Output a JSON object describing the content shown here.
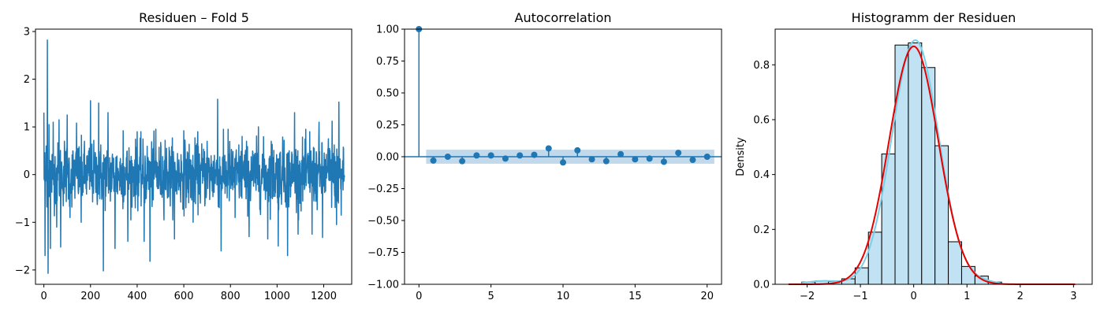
{
  "chart_data": [
    {
      "type": "line",
      "title": "Residuen – Fold 5",
      "xlabel": "",
      "ylabel": "",
      "xlim": [
        -36,
        1320
      ],
      "ylim": [
        -2.3,
        3.05
      ],
      "xticks": [
        "0",
        "200",
        "400",
        "600",
        "800",
        "1000",
        "1200"
      ],
      "xtick_values": [
        0,
        200,
        400,
        600,
        800,
        1000,
        1200
      ],
      "yticks": [
        "−2",
        "−1",
        "0",
        "1",
        "2",
        "3"
      ],
      "ytick_values": [
        -2,
        -1,
        0,
        1,
        2,
        3
      ],
      "color": "#1f77b4",
      "n_points": 1290,
      "spikes": [
        {
          "x": 0,
          "y": 1.3
        },
        {
          "x": 5,
          "y": -1.7
        },
        {
          "x": 10,
          "y": 0.6
        },
        {
          "x": 15,
          "y": 2.82
        },
        {
          "x": 18,
          "y": -2.07
        },
        {
          "x": 22,
          "y": 1.05
        },
        {
          "x": 28,
          "y": -1.55
        },
        {
          "x": 40,
          "y": 1.1
        },
        {
          "x": 55,
          "y": -1.1
        },
        {
          "x": 65,
          "y": 1.15
        },
        {
          "x": 72,
          "y": -1.52
        },
        {
          "x": 88,
          "y": 0.7
        },
        {
          "x": 100,
          "y": 1.25
        },
        {
          "x": 112,
          "y": -0.9
        },
        {
          "x": 140,
          "y": 1.08
        },
        {
          "x": 160,
          "y": -1.0
        },
        {
          "x": 200,
          "y": 1.55
        },
        {
          "x": 235,
          "y": 1.5
        },
        {
          "x": 255,
          "y": -2.02
        },
        {
          "x": 275,
          "y": 1.3
        },
        {
          "x": 305,
          "y": -1.55
        },
        {
          "x": 340,
          "y": 0.92
        },
        {
          "x": 360,
          "y": -1.4
        },
        {
          "x": 400,
          "y": 0.9
        },
        {
          "x": 430,
          "y": -1.4
        },
        {
          "x": 455,
          "y": -1.82
        },
        {
          "x": 480,
          "y": 0.95
        },
        {
          "x": 520,
          "y": 0.72
        },
        {
          "x": 560,
          "y": -1.35
        },
        {
          "x": 600,
          "y": 0.92
        },
        {
          "x": 640,
          "y": -1.0
        },
        {
          "x": 660,
          "y": 0.9
        },
        {
          "x": 700,
          "y": 0.7
        },
        {
          "x": 745,
          "y": 1.58
        },
        {
          "x": 760,
          "y": -1.6
        },
        {
          "x": 790,
          "y": 0.95
        },
        {
          "x": 820,
          "y": -0.9
        },
        {
          "x": 850,
          "y": 0.8
        },
        {
          "x": 880,
          "y": -1.3
        },
        {
          "x": 920,
          "y": 1.0
        },
        {
          "x": 960,
          "y": -1.35
        },
        {
          "x": 975,
          "y": 0.7
        },
        {
          "x": 1005,
          "y": -1.5
        },
        {
          "x": 1030,
          "y": 0.72
        },
        {
          "x": 1045,
          "y": -1.7
        },
        {
          "x": 1075,
          "y": 1.3
        },
        {
          "x": 1090,
          "y": -1.25
        },
        {
          "x": 1140,
          "y": 0.9
        },
        {
          "x": 1150,
          "y": -1.25
        },
        {
          "x": 1180,
          "y": 1.1
        },
        {
          "x": 1195,
          "y": -1.32
        },
        {
          "x": 1220,
          "y": 0.75
        },
        {
          "x": 1236,
          "y": 1.12
        },
        {
          "x": 1255,
          "y": -1.05
        },
        {
          "x": 1265,
          "y": 1.52
        },
        {
          "x": 1275,
          "y": -0.85
        },
        {
          "x": 1285,
          "y": 0.55
        }
      ]
    },
    {
      "type": "scatter",
      "subtype": "stem",
      "title": "Autocorrelation",
      "xlabel": "",
      "ylabel": "",
      "xlim": [
        -1,
        21
      ],
      "ylim": [
        -1.0,
        1.0
      ],
      "xticks": [
        "0",
        "5",
        "10",
        "15",
        "20"
      ],
      "xtick_values": [
        0,
        5,
        10,
        15,
        20
      ],
      "yticks": [
        "−1.00",
        "−0.75",
        "−0.50",
        "−0.25",
        "0.00",
        "0.25",
        "0.50",
        "0.75",
        "1.00"
      ],
      "ytick_values": [
        -1.0,
        -0.75,
        -0.5,
        -0.25,
        0.0,
        0.25,
        0.5,
        0.75,
        1.0
      ],
      "lags": [
        0,
        1,
        2,
        3,
        4,
        5,
        6,
        7,
        8,
        9,
        10,
        11,
        12,
        13,
        14,
        15,
        16,
        17,
        18,
        19,
        20
      ],
      "values": [
        1.0,
        -0.03,
        0.0,
        -0.035,
        0.01,
        0.01,
        -0.015,
        0.01,
        0.015,
        0.065,
        -0.045,
        0.05,
        -0.02,
        -0.035,
        0.02,
        -0.02,
        -0.015,
        -0.04,
        0.03,
        -0.025,
        0.0
      ],
      "confidence_band": 0.055,
      "color": "#1f77b4"
    },
    {
      "type": "bar",
      "subtype": "histogram",
      "title": "Histogramm der Residuen",
      "xlabel": "",
      "ylabel": "Density",
      "xlim": [
        -2.6,
        3.35
      ],
      "ylim": [
        0,
        0.93
      ],
      "xticks": [
        "−2",
        "−1",
        "0",
        "1",
        "2",
        "3"
      ],
      "xtick_values": [
        -2,
        -1,
        0,
        1,
        2,
        3
      ],
      "yticks": [
        "0.0",
        "0.2",
        "0.4",
        "0.6",
        "0.8"
      ],
      "ytick_values": [
        0.0,
        0.2,
        0.4,
        0.6,
        0.8
      ],
      "bin_edges": [
        -2.1,
        -1.85,
        -1.6,
        -1.35,
        -1.1,
        -0.85,
        -0.6,
        -0.35,
        -0.1,
        0.15,
        0.4,
        0.65,
        0.9,
        1.15,
        1.4,
        1.65
      ],
      "values": [
        0.008,
        0.012,
        0.01,
        0.02,
        0.06,
        0.19,
        0.475,
        0.872,
        0.88,
        0.79,
        0.505,
        0.155,
        0.065,
        0.03,
        0.008
      ],
      "bar_color": "#c0e2f2",
      "kde_color": "#79cfe6",
      "normal_fit_color": "#e60000",
      "normal_mean": 0.0,
      "normal_std": 0.46
    }
  ]
}
